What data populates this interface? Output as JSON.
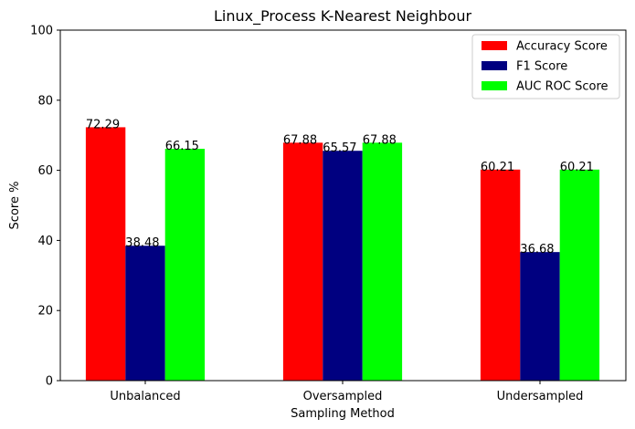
{
  "chart_data": {
    "type": "bar",
    "title": "Linux_Process K-Nearest Neighbour",
    "xlabel": "Sampling Method",
    "ylabel": "Score %",
    "ylim": [
      0,
      100
    ],
    "yticks": [
      0,
      20,
      40,
      60,
      80,
      100
    ],
    "grid": false,
    "legend_position": "top-right",
    "categories": [
      "Unbalanced",
      "Oversampled",
      "Undersampled"
    ],
    "series": [
      {
        "name": "Accuracy Score",
        "color": "#ff0000",
        "values": [
          72.29,
          67.88,
          60.21
        ]
      },
      {
        "name": "F1 Score",
        "color": "#000080",
        "values": [
          38.48,
          65.57,
          36.68
        ]
      },
      {
        "name": "AUC ROC Score",
        "color": "#00ff00",
        "values": [
          66.15,
          67.88,
          60.21
        ]
      }
    ]
  }
}
